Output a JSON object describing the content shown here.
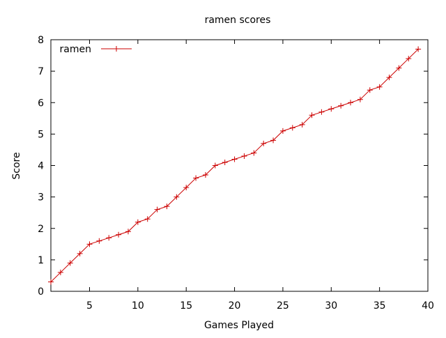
{
  "chart_data": {
    "type": "line",
    "title": "ramen scores",
    "xlabel": "Games Played",
    "ylabel": "Score",
    "xlim": [
      1,
      40
    ],
    "ylim": [
      0,
      8
    ],
    "xticks": [
      5,
      10,
      15,
      20,
      25,
      30,
      35,
      40
    ],
    "yticks": [
      0,
      1,
      2,
      3,
      4,
      5,
      6,
      7,
      8
    ],
    "grid": false,
    "legend_position": "top-left",
    "series": [
      {
        "name": "ramen",
        "color": "#cc0000",
        "marker": "plus",
        "x": [
          1,
          2,
          3,
          4,
          5,
          6,
          7,
          8,
          9,
          10,
          11,
          12,
          13,
          14,
          15,
          16,
          17,
          18,
          19,
          20,
          21,
          22,
          23,
          24,
          25,
          26,
          27,
          28,
          29,
          30,
          31,
          32,
          33,
          34,
          35,
          36,
          37,
          38,
          39
        ],
        "y": [
          0.3,
          0.6,
          0.9,
          1.2,
          1.5,
          1.6,
          1.7,
          1.8,
          1.9,
          2.2,
          2.3,
          2.6,
          2.7,
          3.0,
          3.3,
          3.6,
          3.7,
          4.0,
          4.1,
          4.2,
          4.3,
          4.4,
          4.7,
          4.8,
          5.1,
          5.2,
          5.3,
          5.6,
          5.7,
          5.8,
          5.9,
          6.0,
          6.1,
          6.4,
          6.5,
          6.8,
          7.1,
          7.4,
          7.7
        ]
      }
    ]
  }
}
